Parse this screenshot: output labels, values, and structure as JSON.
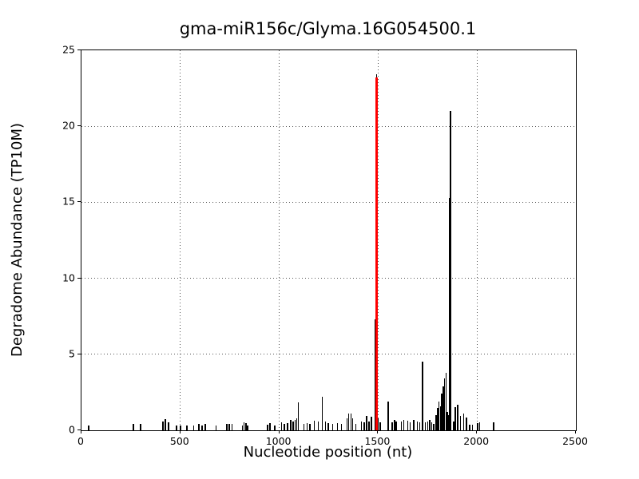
{
  "figure": {
    "background": "#ffffff",
    "text_color": "#000000"
  },
  "chart_data": {
    "type": "bar",
    "title": "gma-miR156c/Glyma.16G054500.1",
    "xlabel": "Nucleotide position (nt)",
    "ylabel": "Degradome Abundance (TP10M)",
    "xlim": [
      0,
      2500
    ],
    "ylim": [
      0,
      25
    ],
    "x_ticks": [
      0,
      500,
      1000,
      1500,
      2000,
      2500
    ],
    "y_ticks": [
      0,
      5,
      10,
      15,
      20,
      25
    ],
    "grid": "dotted interior gridlines at ticks",
    "legend_position": "none",
    "series": [
      {
        "name": "degradome-abundance",
        "color": "#000000",
        "points": [
          [
            36,
            0.3
          ],
          [
            262,
            0.4
          ],
          [
            298,
            0.4
          ],
          [
            411,
            0.6
          ],
          [
            423,
            0.75
          ],
          [
            440,
            0.5
          ],
          [
            480,
            0.3
          ],
          [
            500,
            0.3
          ],
          [
            532,
            0.3
          ],
          [
            568,
            0.3
          ],
          [
            593,
            0.4
          ],
          [
            609,
            0.3
          ],
          [
            625,
            0.4
          ],
          [
            681,
            0.3
          ],
          [
            734,
            0.4
          ],
          [
            746,
            0.4
          ],
          [
            762,
            0.4
          ],
          [
            814,
            0.3
          ],
          [
            822,
            0.55
          ],
          [
            832,
            0.45
          ],
          [
            841,
            0.3
          ],
          [
            940,
            0.35
          ],
          [
            953,
            0.45
          ],
          [
            977,
            0.3
          ],
          [
            1011,
            0.5
          ],
          [
            1025,
            0.4
          ],
          [
            1043,
            0.45
          ],
          [
            1057,
            0.7
          ],
          [
            1070,
            0.6
          ],
          [
            1080,
            0.7
          ],
          [
            1088,
            0.8
          ],
          [
            1096,
            1.85
          ],
          [
            1125,
            0.4
          ],
          [
            1141,
            0.45
          ],
          [
            1155,
            0.4
          ],
          [
            1178,
            0.65
          ],
          [
            1198,
            0.6
          ],
          [
            1218,
            2.2
          ],
          [
            1234,
            0.6
          ],
          [
            1248,
            0.45
          ],
          [
            1270,
            0.4
          ],
          [
            1294,
            0.45
          ],
          [
            1315,
            0.4
          ],
          [
            1343,
            0.8
          ],
          [
            1351,
            1.1
          ],
          [
            1363,
            1.1
          ],
          [
            1371,
            0.8
          ],
          [
            1387,
            0.4
          ],
          [
            1415,
            0.6
          ],
          [
            1430,
            0.5
          ],
          [
            1441,
            0.95
          ],
          [
            1453,
            0.6
          ],
          [
            1467,
            0.9
          ],
          [
            1484,
            7.3
          ],
          [
            1492,
            23.4
          ],
          [
            1500,
            0.8
          ],
          [
            1510,
            0.55
          ],
          [
            1551,
            1.9
          ],
          [
            1571,
            0.5
          ],
          [
            1583,
            0.7
          ],
          [
            1592,
            0.6
          ],
          [
            1617,
            0.6
          ],
          [
            1630,
            0.7
          ],
          [
            1650,
            0.65
          ],
          [
            1662,
            0.5
          ],
          [
            1681,
            0.7
          ],
          [
            1698,
            0.6
          ],
          [
            1710,
            0.5
          ],
          [
            1725,
            4.5
          ],
          [
            1738,
            0.5
          ],
          [
            1750,
            0.6
          ],
          [
            1761,
            0.7
          ],
          [
            1771,
            0.55
          ],
          [
            1781,
            0.4
          ],
          [
            1793,
            1.0
          ],
          [
            1801,
            1.45
          ],
          [
            1808,
            1.9
          ],
          [
            1815,
            1.6
          ],
          [
            1822,
            2.4
          ],
          [
            1829,
            2.9
          ],
          [
            1836,
            3.4
          ],
          [
            1843,
            3.8
          ],
          [
            1850,
            1.2
          ],
          [
            1856,
            1.0
          ],
          [
            1862,
            15.3
          ],
          [
            1866,
            21.0
          ],
          [
            1881,
            0.6
          ],
          [
            1890,
            1.5
          ],
          [
            1903,
            1.7
          ],
          [
            1917,
            0.95
          ],
          [
            1933,
            1.1
          ],
          [
            1947,
            0.85
          ],
          [
            1963,
            0.35
          ],
          [
            1977,
            0.35
          ],
          [
            2003,
            0.45
          ],
          [
            2013,
            0.5
          ],
          [
            2084,
            0.55
          ]
        ]
      },
      {
        "name": "mirna-cleavage-site-marker",
        "color": "#ff0000",
        "points": [
          [
            1492,
            23.2
          ]
        ]
      }
    ]
  }
}
